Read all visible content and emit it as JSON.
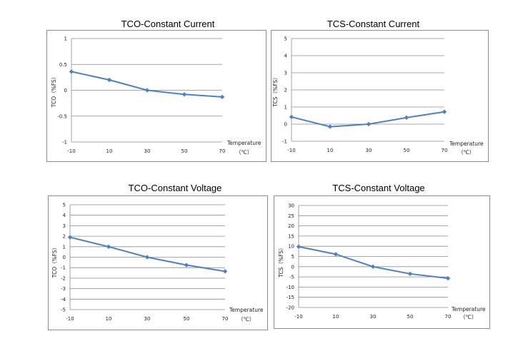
{
  "chart_data": [
    {
      "type": "line",
      "title": "TCO-Constant Current",
      "ylabel": "TCO（%FS）",
      "xlabel_line1": "Temperature",
      "xlabel_line2": "（℃）",
      "categories": [
        "-10",
        "10",
        "30",
        "50",
        "70"
      ],
      "yticks": [
        "1",
        "0.5",
        "0",
        "-0.5",
        "-1"
      ],
      "ylim": [
        -1,
        1
      ],
      "values": [
        0.36,
        0.2,
        0.0,
        -0.08,
        -0.13
      ],
      "line_color": "#4f81bd",
      "grid": true
    },
    {
      "type": "line",
      "title": "TCS-Constant Current",
      "ylabel": "TCS（%FS）",
      "xlabel_line1": "Temperature",
      "xlabel_line2": "（℃）",
      "categories": [
        "-10",
        "10",
        "30",
        "50",
        "70"
      ],
      "yticks": [
        "5",
        "4",
        "3",
        "2",
        "1",
        "0",
        "-1"
      ],
      "ylim": [
        -1,
        5
      ],
      "values": [
        0.42,
        -0.15,
        0.0,
        0.38,
        0.72
      ],
      "line_color": "#4f81bd",
      "grid": true
    },
    {
      "type": "line",
      "title": "TCO-Constant Voltage",
      "ylabel": "TCO（%FS）",
      "xlabel_line1": "Temperature",
      "xlabel_line2": "（℃）",
      "categories": [
        "-10",
        "10",
        "30",
        "50",
        "70"
      ],
      "yticks": [
        "5",
        "4",
        "3",
        "2",
        "1",
        "0",
        "-1",
        "-2",
        "-3",
        "-4",
        "-5"
      ],
      "ylim": [
        -5,
        5
      ],
      "values": [
        1.9,
        1.0,
        0.0,
        -0.75,
        -1.35
      ],
      "line_color": "#4f81bd",
      "grid": true
    },
    {
      "type": "line",
      "title": "TCS-Constant Voltage",
      "ylabel": "TCS（%FS）",
      "xlabel_line1": "Temperature",
      "xlabel_line2": "（℃）",
      "categories": [
        "-10",
        "10",
        "30",
        "50",
        "70"
      ],
      "yticks": [
        "30",
        "25",
        "20",
        "15",
        "10",
        "5",
        "0",
        "-5",
        "-10",
        "-15",
        "-20"
      ],
      "ylim": [
        -20,
        30
      ],
      "values": [
        9.8,
        6.1,
        0.0,
        -3.5,
        -5.7
      ],
      "line_color": "#4f81bd",
      "grid": true
    }
  ]
}
